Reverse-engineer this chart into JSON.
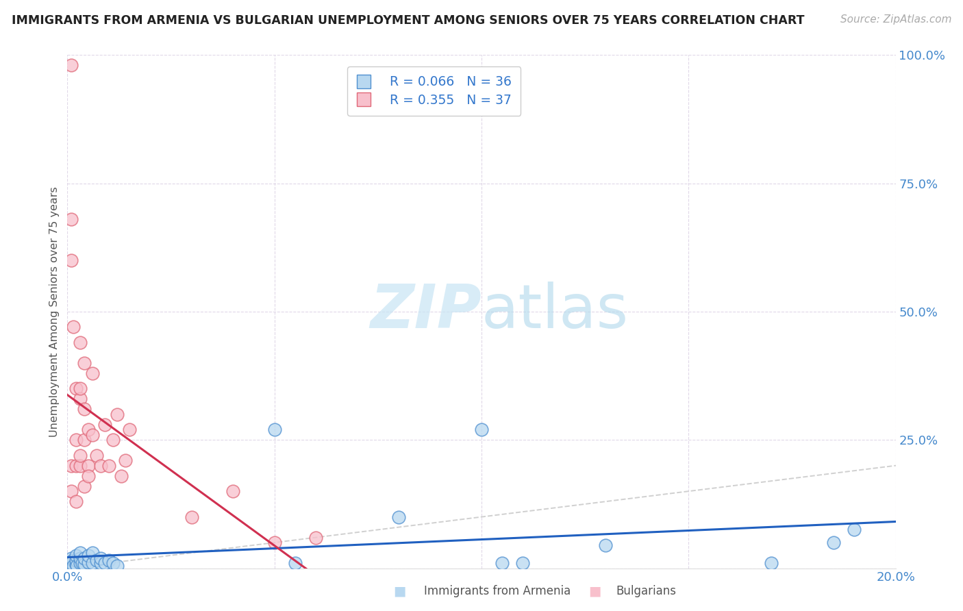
{
  "title": "IMMIGRANTS FROM ARMENIA VS BULGARIAN UNEMPLOYMENT AMONG SENIORS OVER 75 YEARS CORRELATION CHART",
  "source": "Source: ZipAtlas.com",
  "ylabel": "Unemployment Among Seniors over 75 years",
  "xlim": [
    0.0,
    0.2
  ],
  "ylim": [
    0.0,
    1.0
  ],
  "legend_r1": "R = 0.066",
  "legend_n1": "N = 36",
  "legend_r2": "R = 0.355",
  "legend_n2": "N = 37",
  "color_blue_fill": "#b8d8f0",
  "color_pink_fill": "#f8c0cc",
  "color_blue_edge": "#5090d0",
  "color_pink_edge": "#e06878",
  "color_blue_line": "#2060c0",
  "color_pink_line": "#d03050",
  "color_diag": "#d0d0d0",
  "watermark_zip": "ZIP",
  "watermark_atlas": "atlas",
  "blue_x": [
    0.0005,
    0.001,
    0.001,
    0.0012,
    0.0015,
    0.002,
    0.002,
    0.002,
    0.0022,
    0.003,
    0.003,
    0.003,
    0.0035,
    0.004,
    0.004,
    0.005,
    0.005,
    0.006,
    0.006,
    0.007,
    0.008,
    0.008,
    0.009,
    0.01,
    0.011,
    0.012,
    0.05,
    0.055,
    0.08,
    0.1,
    0.105,
    0.11,
    0.13,
    0.17,
    0.185,
    0.19
  ],
  "blue_y": [
    0.005,
    0.01,
    0.02,
    0.015,
    0.005,
    0.008,
    0.015,
    0.025,
    0.005,
    0.01,
    0.02,
    0.03,
    0.01,
    0.008,
    0.02,
    0.012,
    0.025,
    0.01,
    0.03,
    0.015,
    0.01,
    0.02,
    0.01,
    0.015,
    0.01,
    0.005,
    0.27,
    0.01,
    0.1,
    0.27,
    0.01,
    0.01,
    0.045,
    0.01,
    0.05,
    0.075
  ],
  "pink_x": [
    0.001,
    0.001,
    0.001,
    0.001,
    0.0015,
    0.002,
    0.002,
    0.002,
    0.002,
    0.003,
    0.003,
    0.003,
    0.003,
    0.003,
    0.004,
    0.004,
    0.004,
    0.004,
    0.005,
    0.005,
    0.005,
    0.006,
    0.006,
    0.007,
    0.008,
    0.009,
    0.01,
    0.011,
    0.012,
    0.013,
    0.014,
    0.015,
    0.03,
    0.04,
    0.05,
    0.06,
    0.001
  ],
  "pink_y": [
    0.6,
    0.68,
    0.2,
    0.15,
    0.47,
    0.2,
    0.35,
    0.25,
    0.13,
    0.2,
    0.33,
    0.35,
    0.44,
    0.22,
    0.31,
    0.25,
    0.4,
    0.16,
    0.2,
    0.27,
    0.18,
    0.26,
    0.38,
    0.22,
    0.2,
    0.28,
    0.2,
    0.25,
    0.3,
    0.18,
    0.21,
    0.27,
    0.1,
    0.15,
    0.05,
    0.06,
    0.98
  ]
}
